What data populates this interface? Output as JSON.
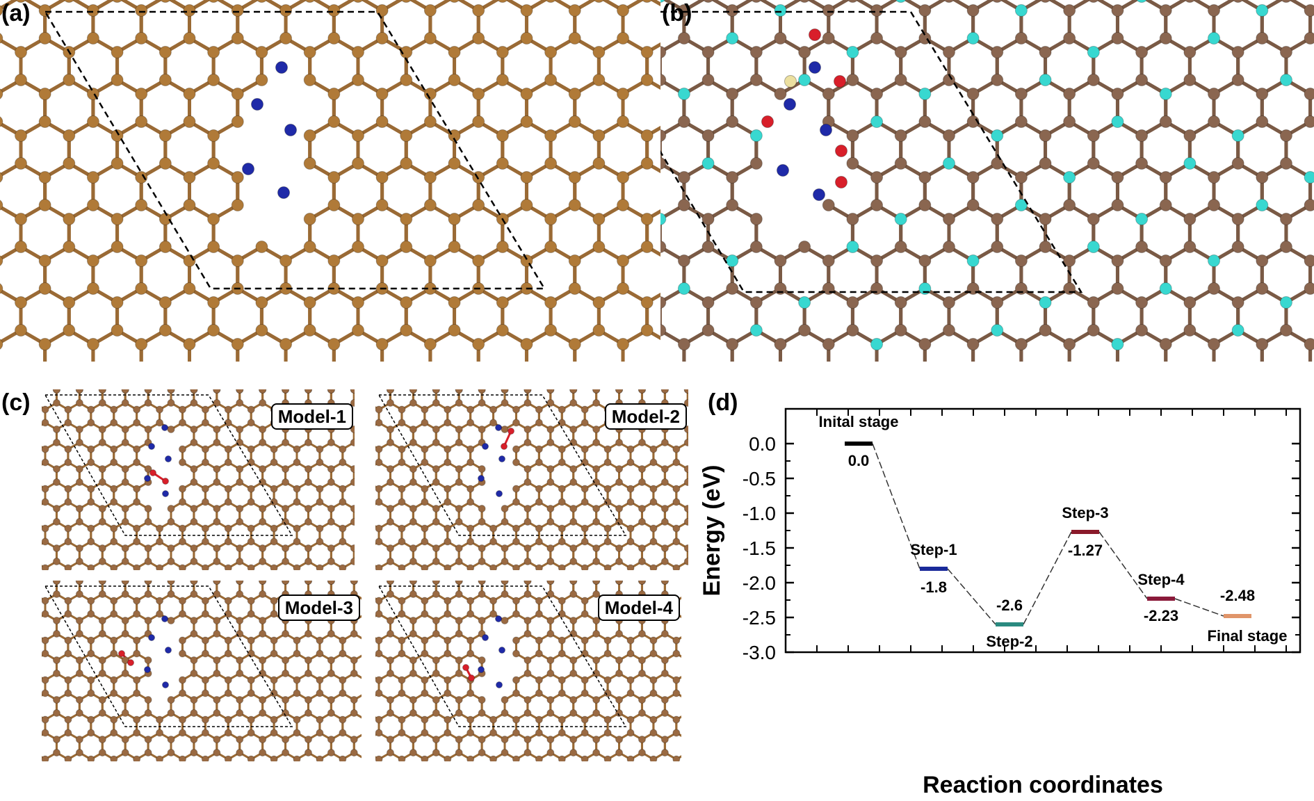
{
  "panels": {
    "a": {
      "label": "(a)"
    },
    "b": {
      "label": "(b)"
    },
    "c": {
      "label": "(c)",
      "models": [
        "Model-1",
        "Model-2",
        "Model-3",
        "Model-4"
      ]
    },
    "d": {
      "label": "(d)"
    }
  },
  "colors": {
    "carbon_a": "#b07a38",
    "carbon_b": "#8a6650",
    "nitrogen": "#1f2aa8",
    "boron_cyan": "#38d8d0",
    "oxygen_red": "#d81f2a",
    "sulfur_pale": "#ece0a0",
    "bond": "#9a6a35"
  },
  "chart_data": {
    "type": "energy-level-diagram",
    "xlabel": "Reaction coordinates",
    "ylabel": "Energy (eV)",
    "ylim": [
      -3.0,
      0.5
    ],
    "yticks": [
      "0.0",
      "-0.5",
      "-1.0",
      "-1.5",
      "-2.0",
      "-2.5",
      "-3.0"
    ],
    "levels": [
      {
        "name": "Inital stage",
        "value": 0.0,
        "value_label": "0.0",
        "color": "#000000"
      },
      {
        "name": "Step-1",
        "value": -1.8,
        "value_label": "-1.8",
        "color": "#1a2a9a"
      },
      {
        "name": "Step-2",
        "value": -2.6,
        "value_label": "-2.6",
        "color": "#2a8a80"
      },
      {
        "name": "Step-3",
        "value": -1.27,
        "value_label": "-1.27",
        "color": "#8a1a2a"
      },
      {
        "name": "Step-4",
        "value": -2.23,
        "value_label": "-2.23",
        "color": "#8a1a3a"
      },
      {
        "name": "Final stage",
        "value": -2.48,
        "value_label": "-2.48",
        "color": "#e0956a"
      }
    ]
  }
}
